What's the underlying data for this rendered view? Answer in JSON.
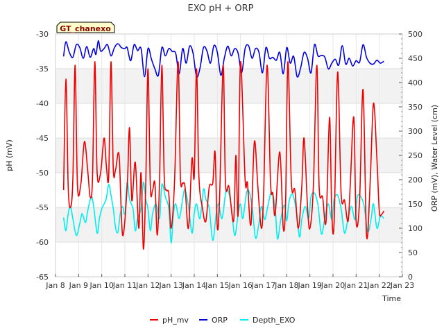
{
  "chart_data": {
    "type": "line",
    "title": "EXO pH + ORP",
    "station_label": "GT_chanexo",
    "xlabel": "Time",
    "ylabel_left": "pH (mV)",
    "ylabel_right": "ORP (mV), Water Level (cm)",
    "x_ticks": [
      "Jan 8",
      "Jan 9",
      "Jan 10",
      "Jan 11",
      "Jan 12",
      "Jan 13",
      "Jan 14",
      "Jan 15",
      "Jan 16",
      "Jan 17",
      "Jan 18",
      "Jan 19",
      "Jan 20",
      "Jan 21",
      "Jan 22",
      "Jan 23"
    ],
    "x_range_days": [
      8,
      23
    ],
    "ylim_left": [
      -65,
      -30
    ],
    "ylim_right": [
      0,
      500
    ],
    "left_ticks": [
      -65,
      -60,
      -55,
      -50,
      -45,
      -40,
      -35,
      -30
    ],
    "right_ticks": [
      0,
      50,
      100,
      150,
      200,
      250,
      300,
      350,
      400,
      450,
      500
    ],
    "grid": true,
    "legend_position": "bottom",
    "series": [
      {
        "name": "pH_mv",
        "axis": "left",
        "color": "#ee0000",
        "x": [
          8.35,
          8.45,
          8.55,
          8.65,
          8.75,
          8.85,
          8.95,
          9.1,
          9.25,
          9.4,
          9.5,
          9.6,
          9.7,
          9.8,
          9.95,
          10.1,
          10.2,
          10.3,
          10.4,
          10.5,
          10.6,
          10.75,
          10.9,
          11.1,
          11.2,
          11.3,
          11.45,
          11.6,
          11.7,
          11.8,
          11.9,
          12.0,
          12.1,
          12.2,
          12.3,
          12.4,
          12.5,
          12.6,
          12.7,
          12.8,
          12.9,
          13.0,
          13.15,
          13.3,
          13.4,
          13.5,
          13.6,
          13.75,
          13.9,
          14.0,
          14.1,
          14.2,
          14.35,
          14.5,
          14.65,
          14.8,
          14.9,
          15.0,
          15.1,
          15.25,
          15.35,
          15.5,
          15.7,
          15.8,
          15.9,
          16.0,
          16.2,
          16.3,
          16.45,
          16.6,
          16.75,
          16.9,
          17.0,
          17.15,
          17.3,
          17.4,
          17.5,
          17.7,
          17.85,
          17.95,
          18.05,
          18.2,
          18.35,
          18.5,
          18.65,
          18.75,
          18.9,
          19.0,
          19.15,
          19.3,
          19.4,
          19.55,
          19.7,
          19.85,
          19.95,
          20.05,
          20.2,
          20.35,
          20.5,
          20.65,
          20.75,
          20.9,
          21.0,
          21.15,
          21.3,
          21.45,
          21.6,
          21.75,
          21.9,
          22.0,
          22.1,
          22.2
        ],
        "values": [
          -52.5,
          -36.5,
          -52,
          -55,
          -51,
          -34.5,
          -52,
          -51.5,
          -45.5,
          -50,
          -53.5,
          -51,
          -34,
          -50,
          -50,
          -45,
          -49,
          -50.5,
          -34,
          -49.5,
          -49.5,
          -47.5,
          -59,
          -52,
          -43.5,
          -54,
          -48.5,
          -58,
          -50,
          -61,
          -52,
          -35,
          -52,
          -52.5,
          -51.5,
          -59,
          -51,
          -34.5,
          -50.5,
          -52.5,
          -53,
          -58,
          -51,
          -34,
          -50.5,
          -51.5,
          -52,
          -58,
          -48,
          -50.5,
          -35,
          -50.5,
          -55,
          -57,
          -52,
          -51.5,
          -47,
          -58,
          -53,
          -34.5,
          -51.5,
          -52,
          -57,
          -47.5,
          -56,
          -34,
          -51,
          -51.5,
          -57.5,
          -45.5,
          -52,
          -58,
          -53,
          -34.5,
          -51.5,
          -53,
          -56,
          -47,
          -58,
          -54,
          -34,
          -51.5,
          -52.5,
          -58,
          -52,
          -45,
          -55,
          -58,
          -52,
          -34.5,
          -52,
          -53.5,
          -57,
          -42,
          -56,
          -57,
          -35.5,
          -53,
          -54,
          -57,
          -51.5,
          -42,
          -57,
          -54,
          -38,
          -59,
          -52,
          -40,
          -48,
          -55.5,
          -56,
          -55.5
        ]
      },
      {
        "name": "ORP",
        "axis": "right",
        "color": "#0000dd",
        "x": [
          8.35,
          8.45,
          8.6,
          8.75,
          8.9,
          9.05,
          9.2,
          9.35,
          9.5,
          9.65,
          9.75,
          9.85,
          9.95,
          10.1,
          10.25,
          10.4,
          10.55,
          10.7,
          10.85,
          11.0,
          11.1,
          11.25,
          11.4,
          11.55,
          11.7,
          11.85,
          12.0,
          12.15,
          12.3,
          12.45,
          12.6,
          12.75,
          12.9,
          13.05,
          13.2,
          13.35,
          13.5,
          13.65,
          13.8,
          13.95,
          14.1,
          14.25,
          14.4,
          14.55,
          14.7,
          14.85,
          15.0,
          15.15,
          15.3,
          15.45,
          15.6,
          15.75,
          15.9,
          16.05,
          16.2,
          16.35,
          16.5,
          16.65,
          16.8,
          16.95,
          17.1,
          17.25,
          17.4,
          17.55,
          17.7,
          17.85,
          18.0,
          18.15,
          18.3,
          18.45,
          18.6,
          18.75,
          18.9,
          19.05,
          19.2,
          19.35,
          19.5,
          19.65,
          19.8,
          19.95,
          20.1,
          20.25,
          20.4,
          20.55,
          20.7,
          20.85,
          21.0,
          21.15,
          21.3,
          21.45,
          21.6,
          21.75,
          21.9,
          22.05,
          22.2
        ],
        "values": [
          454,
          484,
          462,
          452,
          478,
          472,
          450,
          474,
          452,
          470,
          458,
          486,
          465,
          470,
          478,
          455,
          472,
          480,
          472,
          470,
          472,
          445,
          478,
          466,
          470,
          412,
          470,
          448,
          428,
          415,
          472,
          455,
          470,
          464,
          460,
          418,
          470,
          440,
          475,
          460,
          412,
          430,
          472,
          465,
          440,
          476,
          462,
          415,
          450,
          475,
          455,
          470,
          460,
          420,
          470,
          476,
          450,
          470,
          462,
          420,
          472,
          450,
          452,
          446,
          462,
          418,
          472,
          440,
          454,
          412,
          430,
          462,
          450,
          420,
          478,
          455,
          456,
          452,
          428,
          440,
          448,
          436,
          476,
          438,
          450,
          434,
          445,
          442,
          478,
          452,
          440,
          438,
          446,
          440,
          444
        ]
      },
      {
        "name": "Depth_EXO",
        "axis": "right",
        "color": "#00eeee",
        "x": [
          8.35,
          8.45,
          8.55,
          8.65,
          8.75,
          8.9,
          9.05,
          9.15,
          9.3,
          9.4,
          9.55,
          9.65,
          9.8,
          9.9,
          10.0,
          10.1,
          10.2,
          10.3,
          10.4,
          10.5,
          10.6,
          10.7,
          10.8,
          10.9,
          11.0,
          11.1,
          11.2,
          11.35,
          11.45,
          11.55,
          11.7,
          11.8,
          11.9,
          12.0,
          12.1,
          12.2,
          12.35,
          12.5,
          12.6,
          12.75,
          12.9,
          13.0,
          13.1,
          13.2,
          13.35,
          13.5,
          13.6,
          13.75,
          13.9,
          14.0,
          14.1,
          14.25,
          14.4,
          14.5,
          14.65,
          14.8,
          14.95,
          15.05,
          15.2,
          15.35,
          15.45,
          15.6,
          15.75,
          15.9,
          16.0,
          16.1,
          16.25,
          16.35,
          16.5,
          16.65,
          16.8,
          16.9,
          17.05,
          17.2,
          17.35,
          17.5,
          17.6,
          17.75,
          17.9,
          18.0,
          18.1,
          18.25,
          18.4,
          18.55,
          18.65,
          18.8,
          18.95,
          19.05,
          19.2,
          19.35,
          19.5,
          19.65,
          19.8,
          19.95,
          20.05,
          20.2,
          20.35,
          20.5,
          20.65,
          20.8,
          20.95,
          21.05,
          21.2,
          21.35,
          21.5,
          21.65,
          21.75,
          21.9,
          22.05,
          22.2
        ],
        "values": [
          122,
          95,
          130,
          145,
          120,
          85,
          110,
          130,
          112,
          138,
          165,
          145,
          90,
          120,
          140,
          150,
          162,
          190,
          168,
          140,
          100,
          92,
          130,
          145,
          130,
          195,
          160,
          140,
          95,
          120,
          140,
          195,
          160,
          140,
          95,
          130,
          150,
          120,
          190,
          165,
          140,
          70,
          130,
          150,
          120,
          160,
          180,
          145,
          90,
          130,
          150,
          120,
          180,
          160,
          140,
          75,
          130,
          150,
          120,
          170,
          180,
          145,
          85,
          130,
          150,
          120,
          170,
          178,
          145,
          80,
          110,
          145,
          118,
          150,
          175,
          140,
          78,
          120,
          148,
          115,
          155,
          170,
          140,
          82,
          118,
          145,
          120,
          165,
          172,
          148,
          88,
          122,
          150,
          118,
          160,
          168,
          140,
          90,
          120,
          145,
          118,
          165,
          165,
          145,
          92,
          120,
          150,
          100,
          125,
          120
        ]
      }
    ]
  }
}
